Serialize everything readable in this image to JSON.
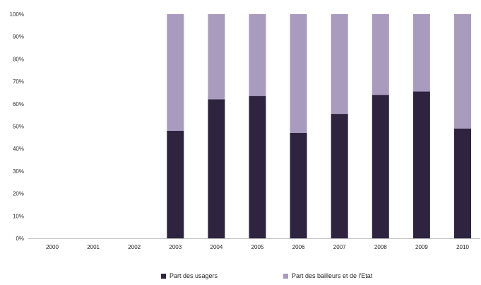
{
  "chart_data": {
    "type": "bar",
    "stacked": true,
    "categories": [
      "2000",
      "2001",
      "2002",
      "2003",
      "2004",
      "2005",
      "2006",
      "2007",
      "2008",
      "2009",
      "2010"
    ],
    "series": [
      {
        "name": "Part des usagers",
        "color": "#2e2440",
        "values": [
          null,
          null,
          null,
          48,
          62,
          63.5,
          47,
          55.5,
          64,
          65.5,
          49
        ]
      },
      {
        "name": "Part des bailleurs et de l'Etat",
        "color": "#a89bbe",
        "values": [
          null,
          null,
          null,
          52,
          38,
          36.5,
          53,
          44.5,
          36,
          34.5,
          51
        ]
      }
    ],
    "ylim": [
      0,
      100
    ],
    "y_ticks": [
      "0%",
      "10%",
      "20%",
      "30%",
      "40%",
      "50%",
      "60%",
      "70%",
      "80%",
      "90%",
      "100%"
    ],
    "grid": false,
    "legend_position": "bottom"
  }
}
